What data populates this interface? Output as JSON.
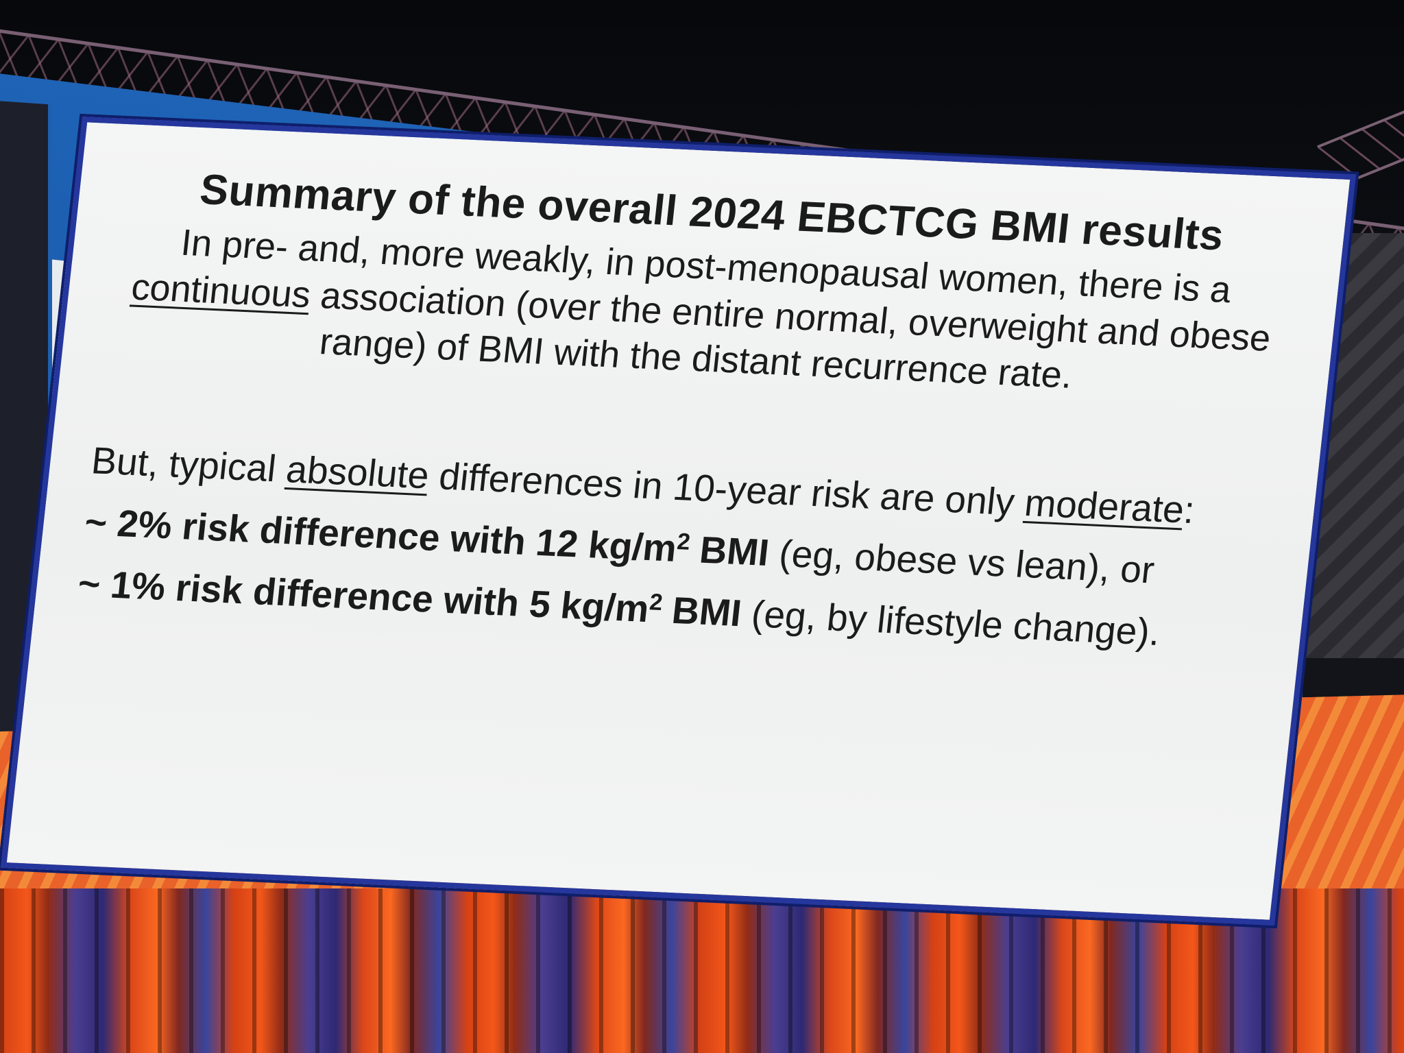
{
  "slide": {
    "title": "Summary of the overall 2024 EBCTCG BMI results",
    "paragraph": {
      "before_underline": "In pre- and, more weakly, in post-menopausal women, there is a ",
      "underlined": "continuous",
      "after_underline": " association (over the entire normal, overweight and obese range) of BMI with the distant recurrence rate."
    },
    "lead": {
      "part1": "But, typical ",
      "underlined1": "absolute",
      "part2": " differences in 10-year risk are only ",
      "underlined2": "moderate",
      "part3": ":"
    },
    "bullets": [
      {
        "bold_prefix": "~ 2% risk difference with 12 kg/m",
        "superscript": "2",
        "bold_suffix": " BMI",
        "rest": " (eg, obese vs lean), or"
      },
      {
        "bold_prefix": "~ 1% risk difference with 5 kg/m",
        "superscript": "2",
        "bold_suffix": " BMI",
        "rest": " (eg, by lifestyle change)."
      }
    ]
  },
  "colors": {
    "slide_border": "#25379c",
    "backdrop_blue": "#1e63b6",
    "backdrop_orange": "#e8622a",
    "slide_background": "#f4f5f5",
    "text": "#1b1b1b"
  }
}
